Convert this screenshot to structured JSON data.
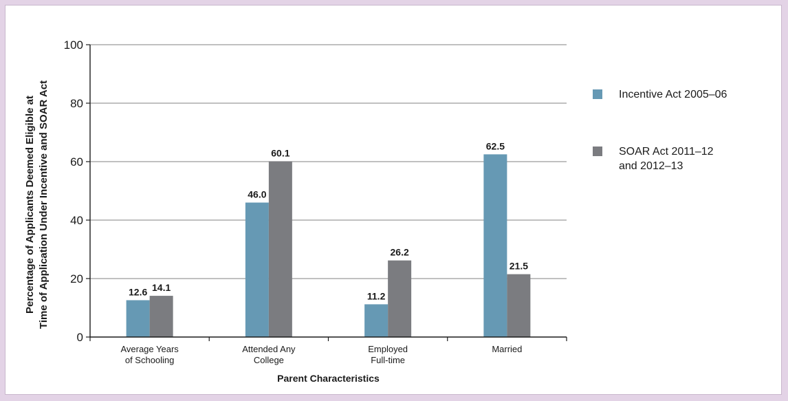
{
  "chart_data": {
    "type": "bar",
    "categories": [
      [
        "Average Years",
        "of Schooling"
      ],
      [
        "Attended Any",
        "College"
      ],
      [
        "Employed",
        "Full-time"
      ],
      [
        "Married"
      ]
    ],
    "series": [
      {
        "name": [
          "Incentive Act 2005–06"
        ],
        "color": "#6699b4",
        "values": [
          12.6,
          46.0,
          11.2,
          62.5
        ],
        "labels": [
          "12.6",
          "46.0",
          "11.2",
          "62.5"
        ]
      },
      {
        "name": [
          "SOAR Act 2011–12",
          "and 2012–13"
        ],
        "color": "#7b7c80",
        "values": [
          14.1,
          60.1,
          26.2,
          21.5
        ],
        "labels": [
          "14.1",
          "60.1",
          "26.2",
          "21.5"
        ]
      }
    ],
    "xlabel": "Parent Characteristics",
    "ylabel": [
      "Percentage of Applicants Deemed Eligible at",
      "Time of Application Under Incentive and SOAR Act"
    ],
    "ylim": [
      0,
      100
    ],
    "yticks": [
      0,
      20,
      40,
      60,
      80,
      100
    ],
    "grid": true,
    "legend": "right"
  }
}
